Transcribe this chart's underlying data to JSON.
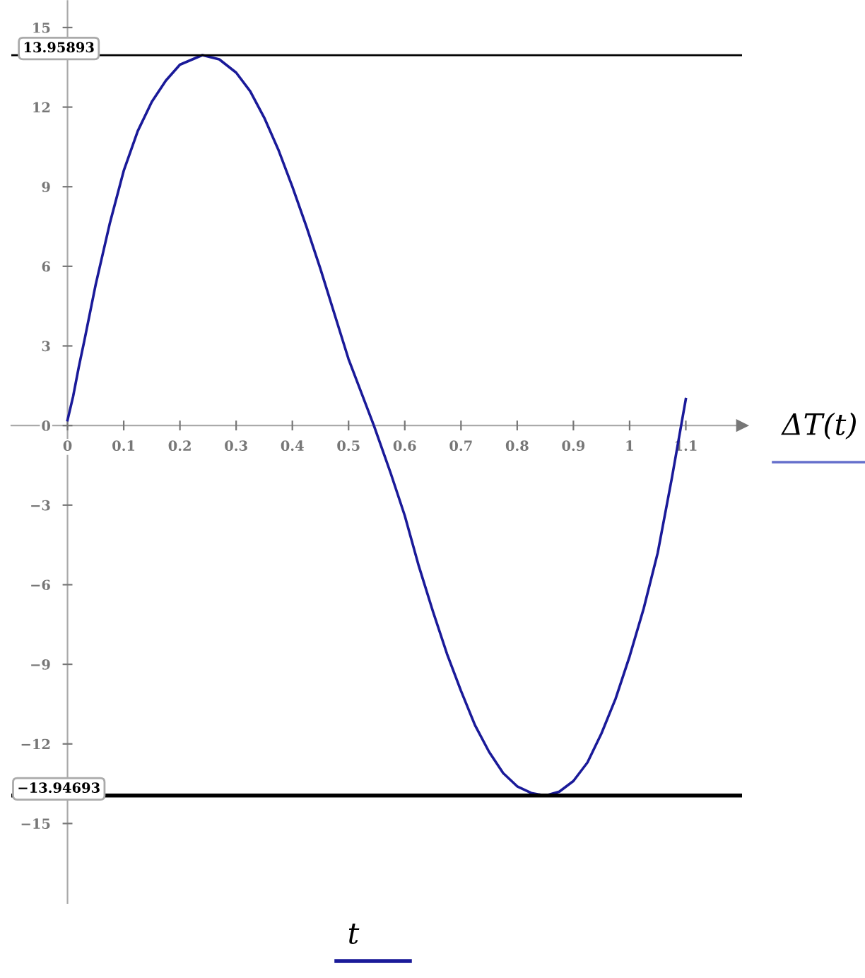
{
  "chart_data": {
    "type": "line",
    "xlabel": "t",
    "ylabel": "ΔT(t)",
    "x": [
      0,
      0.01,
      0.02,
      0.03,
      0.05,
      0.075,
      0.1,
      0.125,
      0.15,
      0.175,
      0.2,
      0.24,
      0.27,
      0.3,
      0.325,
      0.35,
      0.375,
      0.4,
      0.425,
      0.45,
      0.475,
      0.5,
      0.545,
      0.575,
      0.6,
      0.625,
      0.65,
      0.675,
      0.7,
      0.725,
      0.75,
      0.775,
      0.8,
      0.825,
      0.85,
      0.875,
      0.9,
      0.925,
      0.95,
      0.975,
      1.0,
      1.025,
      1.05,
      1.075,
      1.1
    ],
    "series": [
      {
        "color": "#1a1a99",
        "values": [
          0.2,
          1.1,
          2.2,
          3.2,
          5.3,
          7.6,
          9.6,
          11.1,
          12.2,
          13.0,
          13.6,
          13.96,
          13.8,
          13.3,
          12.6,
          11.6,
          10.4,
          9.0,
          7.5,
          5.9,
          4.2,
          2.5,
          0,
          -1.8,
          -3.4,
          -5.3,
          -7.0,
          -8.6,
          -10.0,
          -11.3,
          -12.3,
          -13.1,
          -13.6,
          -13.85,
          -13.95,
          -13.8,
          -13.4,
          -12.7,
          -11.6,
          -10.3,
          -8.7,
          -6.9,
          -4.8,
          -2.0,
          1.0
        ]
      }
    ],
    "xlim": [
      -0.1,
      1.2
    ],
    "ylim": [
      -18,
      16
    ],
    "xticks": [
      0,
      0.1,
      0.2,
      0.3,
      0.4,
      0.5,
      0.6,
      0.7,
      0.8,
      0.9,
      1,
      1.1
    ],
    "yticks": [
      -15,
      -12,
      -9,
      -6,
      -3,
      0,
      3,
      6,
      9,
      12,
      15
    ],
    "ref_lines": [
      {
        "axis": "y",
        "value": 13.95893,
        "label": "13.95893",
        "color": "#000000"
      },
      {
        "axis": "y",
        "value": -13.94693,
        "label": "−13.94693",
        "color": "#000000"
      }
    ],
    "grid": false,
    "legend": false,
    "marker": "none",
    "line_style": "solid"
  }
}
